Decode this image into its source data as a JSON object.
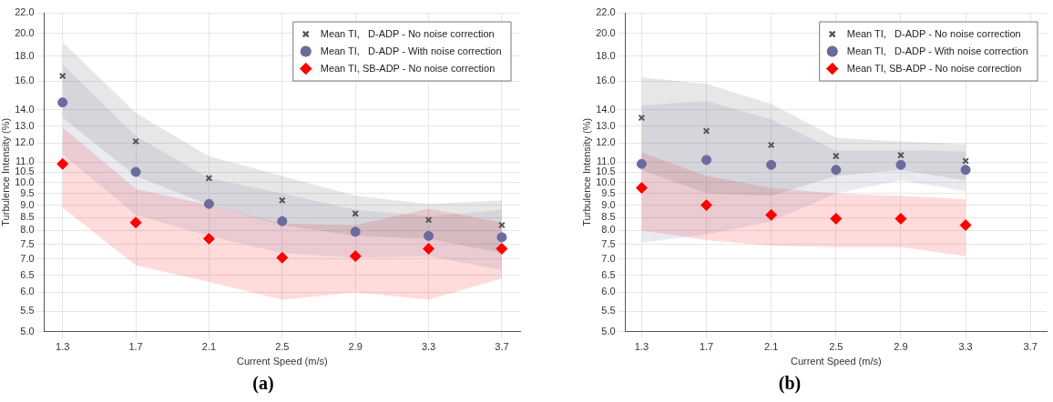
{
  "chart_data": [
    {
      "type": "scatter",
      "xlabel": "Current Speed (m/s)",
      "ylabel": "Turbulence Intensity (%)",
      "x": [
        1.3,
        1.7,
        2.1,
        2.5,
        2.9,
        3.3,
        3.7
      ],
      "xlim": [
        1.2,
        3.8
      ],
      "xticks": [
        1.3,
        1.7,
        2.1,
        2.5,
        2.9,
        3.3,
        3.7
      ],
      "ylim": [
        5,
        22
      ],
      "yticks": [
        {
          "value": 5,
          "label": "5.0"
        },
        {
          "value": 5.5,
          "label": "5.5"
        },
        {
          "value": 6,
          "label": "6.0"
        },
        {
          "value": 6.5,
          "label": "6.5"
        },
        {
          "value": 7,
          "label": "7.0"
        },
        {
          "value": 7.5,
          "label": "7.5"
        },
        {
          "value": 8,
          "label": "8.0"
        },
        {
          "value": 8.5,
          "label": "8.5"
        },
        {
          "value": 9,
          "label": "9.0"
        },
        {
          "value": 9.5,
          "label": "9.5"
        },
        {
          "value": 10,
          "label": "10.0"
        },
        {
          "value": 10.5,
          "label": "10.5"
        },
        {
          "value": 11,
          "label": "11.0"
        },
        {
          "value": 12,
          "label": "12.0"
        },
        {
          "value": 13,
          "label": "13.0"
        },
        {
          "value": 14,
          "label": "14.0"
        },
        {
          "value": 16,
          "label": "16.0"
        },
        {
          "value": 18,
          "label": "18.0"
        },
        {
          "value": 20,
          "label": "20.0"
        },
        {
          "value": 22,
          "label": "22.0"
        }
      ],
      "log": "y",
      "grid": true,
      "legend": "top right",
      "annotations": [
        "(a)"
      ],
      "series": [
        {
          "name": "Mean TI,   D-ADP - No noise correction",
          "color": "#555555",
          "marker": "cross",
          "values": [
            16.4,
            12.1,
            10.2,
            9.2,
            8.65,
            8.4,
            8.2
          ],
          "lower": [
            13.5,
            10.3,
            9.0,
            8.2,
            7.8,
            7.7,
            7.2
          ],
          "upper": [
            19.2,
            13.8,
            11.3,
            10.3,
            9.4,
            9.05,
            9.2
          ]
        },
        {
          "name": "Mean TI,   D-ADP - With noise correction",
          "color": "#6b6b9e",
          "marker": "circle",
          "values": [
            14.5,
            10.5,
            9.05,
            8.35,
            7.95,
            7.8,
            7.75
          ],
          "lower": [
            11.4,
            8.6,
            7.8,
            7.2,
            7.05,
            7.1,
            6.65
          ],
          "upper": [
            17.3,
            12.4,
            10.2,
            9.5,
            8.8,
            8.55,
            8.8
          ]
        },
        {
          "name": "Mean TI, SB-ADP - No noise correction",
          "color": "#ff0000",
          "marker": "diamond",
          "values": [
            10.9,
            8.3,
            7.7,
            7.05,
            7.1,
            7.35,
            7.35
          ],
          "lower": [
            8.9,
            6.8,
            6.3,
            5.8,
            6.0,
            5.8,
            6.4
          ],
          "upper": [
            12.9,
            9.7,
            9.0,
            8.25,
            8.2,
            8.85,
            8.3
          ]
        }
      ]
    },
    {
      "type": "scatter",
      "xlabel": "Current Speed (m/s)",
      "ylabel": "Turbulence Intensity (%)",
      "x": [
        1.3,
        1.7,
        2.1,
        2.5,
        2.9,
        3.3
      ],
      "xlim": [
        1.2,
        3.8
      ],
      "xticks": [
        1.3,
        1.7,
        2.1,
        2.5,
        2.9,
        3.3,
        3.7
      ],
      "ylim": [
        5,
        22
      ],
      "yticks": [
        {
          "value": 5,
          "label": "5.0"
        },
        {
          "value": 5.5,
          "label": "5.5"
        },
        {
          "value": 6,
          "label": "6.0"
        },
        {
          "value": 6.5,
          "label": "6.5"
        },
        {
          "value": 7,
          "label": "7.0"
        },
        {
          "value": 7.5,
          "label": "7.5"
        },
        {
          "value": 8,
          "label": "8.0"
        },
        {
          "value": 8.5,
          "label": "8.5"
        },
        {
          "value": 9,
          "label": "9.0"
        },
        {
          "value": 9.5,
          "label": "9.5"
        },
        {
          "value": 10,
          "label": "10.0"
        },
        {
          "value": 10.5,
          "label": "10.5"
        },
        {
          "value": 11,
          "label": "11.0"
        },
        {
          "value": 12,
          "label": "12.0"
        },
        {
          "value": 13,
          "label": "13.0"
        },
        {
          "value": 14,
          "label": "14.0"
        },
        {
          "value": 16,
          "label": "16.0"
        },
        {
          "value": 18,
          "label": "18.0"
        },
        {
          "value": 20,
          "label": "20.0"
        },
        {
          "value": 22,
          "label": "22.0"
        }
      ],
      "log": "y",
      "grid": true,
      "legend": "top right",
      "annotations": [
        "(b)"
      ],
      "series": [
        {
          "name": "Mean TI,   D-ADP - No noise correction",
          "color": "#555555",
          "marker": "cross",
          "values": [
            13.5,
            12.7,
            11.9,
            11.3,
            11.35,
            11.05
          ],
          "lower": [
            10.6,
            9.5,
            9.4,
            10.3,
            10.6,
            10.1
          ],
          "upper": [
            16.3,
            15.8,
            14.4,
            12.3,
            12.1,
            11.95
          ]
        },
        {
          "name": "Mean TI,   D-ADP - With noise correction",
          "color": "#6b6b9e",
          "marker": "circle",
          "values": [
            10.9,
            11.1,
            10.85,
            10.6,
            10.85,
            10.6
          ],
          "lower": [
            7.55,
            7.85,
            8.35,
            9.5,
            10.1,
            9.6
          ],
          "upper": [
            14.3,
            14.6,
            13.4,
            11.6,
            11.6,
            11.55
          ]
        },
        {
          "name": "Mean TI, SB-ADP - No noise correction",
          "color": "#ff0000",
          "marker": "diamond",
          "values": [
            9.75,
            9.0,
            8.6,
            8.45,
            8.45,
            8.2
          ],
          "lower": [
            8.0,
            7.65,
            7.45,
            7.4,
            7.4,
            7.1
          ],
          "upper": [
            11.5,
            10.3,
            9.75,
            9.5,
            9.4,
            9.25
          ]
        }
      ]
    }
  ]
}
